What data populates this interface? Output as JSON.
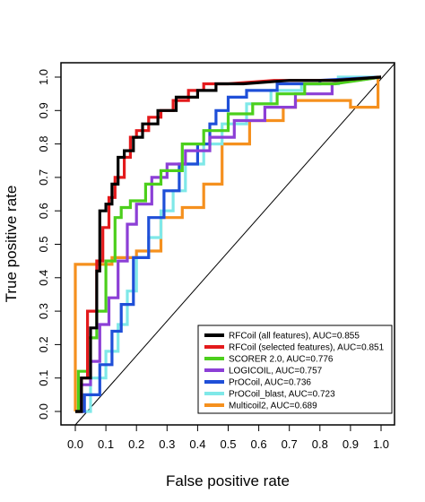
{
  "chart_data": {
    "type": "line",
    "title": "",
    "xlabel": "False positive rate",
    "ylabel": "True positive rate",
    "xlim": [
      0,
      1
    ],
    "ylim": [
      0,
      1
    ],
    "x_ticks": [
      "0.0",
      "0.1",
      "0.2",
      "0.3",
      "0.4",
      "0.5",
      "0.6",
      "0.7",
      "0.8",
      "0.9",
      "1.0"
    ],
    "y_ticks": [
      "0.0",
      "0.1",
      "0.2",
      "0.3",
      "0.4",
      "0.5",
      "0.6",
      "0.7",
      "0.8",
      "0.9",
      "1.0"
    ],
    "grid": false,
    "legend_position": "bottom-right",
    "reference_line": {
      "x": [
        0,
        1
      ],
      "y": [
        0,
        1
      ],
      "color": "#000000"
    },
    "series": [
      {
        "name": "RFCoil (all features), AUC=0.855",
        "color": "#000000",
        "x": [
          0,
          0.02,
          0.02,
          0.05,
          0.05,
          0.07,
          0.07,
          0.08,
          0.08,
          0.1,
          0.1,
          0.12,
          0.12,
          0.14,
          0.14,
          0.16,
          0.16,
          0.19,
          0.19,
          0.22,
          0.22,
          0.27,
          0.27,
          0.33,
          0.33,
          0.4,
          0.4,
          0.46,
          0.46,
          0.55,
          0.7,
          0.85,
          1.0
        ],
        "y": [
          0,
          0,
          0.1,
          0.1,
          0.25,
          0.25,
          0.42,
          0.42,
          0.6,
          0.6,
          0.62,
          0.62,
          0.68,
          0.68,
          0.76,
          0.76,
          0.78,
          0.78,
          0.82,
          0.82,
          0.86,
          0.86,
          0.9,
          0.9,
          0.94,
          0.94,
          0.96,
          0.96,
          0.98,
          0.98,
          0.99,
          0.99,
          1.0
        ]
      },
      {
        "name": "RFCoil (selected features), AUC=0.851",
        "color": "#e31a1c",
        "x": [
          0,
          0.02,
          0.02,
          0.04,
          0.04,
          0.07,
          0.07,
          0.09,
          0.09,
          0.11,
          0.11,
          0.13,
          0.13,
          0.16,
          0.16,
          0.18,
          0.18,
          0.2,
          0.2,
          0.24,
          0.24,
          0.28,
          0.28,
          0.32,
          0.32,
          0.37,
          0.37,
          0.42,
          0.42,
          0.5,
          0.65,
          0.85,
          1.0
        ],
        "y": [
          0,
          0,
          0.1,
          0.1,
          0.3,
          0.3,
          0.45,
          0.45,
          0.55,
          0.55,
          0.64,
          0.64,
          0.7,
          0.7,
          0.76,
          0.76,
          0.82,
          0.82,
          0.84,
          0.84,
          0.88,
          0.88,
          0.9,
          0.9,
          0.93,
          0.93,
          0.96,
          0.96,
          0.98,
          0.98,
          0.99,
          0.99,
          1.0
        ]
      },
      {
        "name": "SCORER 2.0, AUC=0.776",
        "color": "#4ccf1c",
        "x": [
          0,
          0.01,
          0.01,
          0.04,
          0.04,
          0.07,
          0.07,
          0.1,
          0.1,
          0.13,
          0.13,
          0.15,
          0.15,
          0.18,
          0.18,
          0.23,
          0.23,
          0.28,
          0.28,
          0.35,
          0.35,
          0.42,
          0.42,
          0.5,
          0.5,
          0.58,
          0.58,
          0.66,
          0.66,
          0.75,
          0.75,
          0.85,
          1.0
        ],
        "y": [
          0,
          0,
          0.12,
          0.12,
          0.22,
          0.22,
          0.3,
          0.3,
          0.45,
          0.45,
          0.58,
          0.58,
          0.61,
          0.61,
          0.63,
          0.63,
          0.68,
          0.68,
          0.72,
          0.72,
          0.8,
          0.8,
          0.84,
          0.84,
          0.89,
          0.89,
          0.92,
          0.92,
          0.95,
          0.95,
          0.98,
          0.98,
          1.0
        ]
      },
      {
        "name": "LOGICOIL, AUC=0.757",
        "color": "#8c3fd6",
        "x": [
          0,
          0.02,
          0.02,
          0.05,
          0.05,
          0.08,
          0.08,
          0.11,
          0.11,
          0.14,
          0.14,
          0.17,
          0.17,
          0.2,
          0.2,
          0.25,
          0.25,
          0.3,
          0.3,
          0.36,
          0.36,
          0.44,
          0.44,
          0.52,
          0.52,
          0.62,
          0.62,
          0.72,
          0.72,
          0.84,
          0.84,
          1.0
        ],
        "y": [
          0,
          0,
          0.08,
          0.08,
          0.15,
          0.15,
          0.26,
          0.26,
          0.34,
          0.34,
          0.45,
          0.45,
          0.56,
          0.56,
          0.62,
          0.62,
          0.7,
          0.7,
          0.74,
          0.74,
          0.78,
          0.78,
          0.82,
          0.82,
          0.87,
          0.87,
          0.91,
          0.91,
          0.95,
          0.95,
          0.98,
          1.0
        ]
      },
      {
        "name": "PrOCoil, AUC=0.736",
        "color": "#1f4fd8",
        "x": [
          0,
          0.03,
          0.03,
          0.08,
          0.08,
          0.12,
          0.12,
          0.15,
          0.15,
          0.19,
          0.19,
          0.24,
          0.24,
          0.29,
          0.29,
          0.34,
          0.34,
          0.4,
          0.4,
          0.44,
          0.44,
          0.46,
          0.46,
          0.5,
          0.5,
          0.56,
          0.56,
          0.66,
          0.66,
          0.8,
          0.8,
          1.0
        ],
        "y": [
          0,
          0,
          0.05,
          0.05,
          0.14,
          0.14,
          0.24,
          0.24,
          0.32,
          0.32,
          0.46,
          0.46,
          0.58,
          0.58,
          0.66,
          0.66,
          0.74,
          0.74,
          0.8,
          0.8,
          0.86,
          0.86,
          0.9,
          0.9,
          0.94,
          0.94,
          0.96,
          0.96,
          0.98,
          0.98,
          0.99,
          1.0
        ]
      },
      {
        "name": "PrOCoil_blast, AUC=0.723",
        "color": "#7fe8e8",
        "x": [
          0,
          0.05,
          0.05,
          0.1,
          0.1,
          0.14,
          0.14,
          0.17,
          0.17,
          0.2,
          0.2,
          0.24,
          0.24,
          0.28,
          0.28,
          0.32,
          0.32,
          0.36,
          0.36,
          0.42,
          0.42,
          0.48,
          0.48,
          0.56,
          0.56,
          0.64,
          0.64,
          0.74,
          0.74,
          0.86,
          0.86,
          1.0
        ],
        "y": [
          0,
          0,
          0.1,
          0.1,
          0.18,
          0.18,
          0.26,
          0.26,
          0.36,
          0.36,
          0.46,
          0.46,
          0.52,
          0.52,
          0.6,
          0.6,
          0.66,
          0.66,
          0.74,
          0.74,
          0.8,
          0.8,
          0.86,
          0.86,
          0.92,
          0.92,
          0.96,
          0.96,
          0.98,
          0.98,
          1.0,
          1.0
        ]
      },
      {
        "name": "Multicoil2, AUC=0.689",
        "color": "#f5901e",
        "x": [
          0,
          0,
          0,
          0.12,
          0.12,
          0.2,
          0.2,
          0.28,
          0.28,
          0.35,
          0.35,
          0.42,
          0.42,
          0.48,
          0.48,
          0.57,
          0.57,
          0.68,
          0.68,
          0.72,
          0.72,
          0.9,
          0.9,
          0.99,
          0.99,
          1.0
        ],
        "y": [
          0,
          0.06,
          0.44,
          0.44,
          0.46,
          0.46,
          0.48,
          0.48,
          0.58,
          0.58,
          0.61,
          0.61,
          0.68,
          0.68,
          0.8,
          0.8,
          0.87,
          0.87,
          0.91,
          0.91,
          0.93,
          0.93,
          0.91,
          0.91,
          1.0,
          1.0
        ]
      }
    ]
  }
}
